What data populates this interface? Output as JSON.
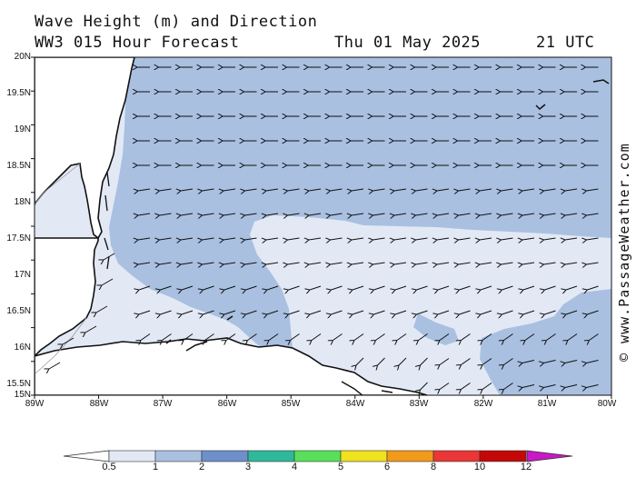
{
  "header": {
    "title": "Wave Height (m) and Direction",
    "model": "WW3 015 Hour Forecast",
    "date": "Thu 01 May 2025",
    "time": "21 UTC"
  },
  "map": {
    "lat_labels": [
      "20N",
      "19.5N",
      "19N",
      "18.5N",
      "18N",
      "17.5N",
      "17N",
      "16.5N",
      "16N",
      "15.5N",
      "15N"
    ],
    "lon_labels": [
      "89W",
      "88W",
      "87W",
      "86W",
      "85W",
      "84W",
      "83W",
      "82W",
      "81W",
      "80W"
    ],
    "lat_range": [
      15,
      20
    ],
    "lon_range": [
      -89,
      -80
    ],
    "arrow_direction": "westward over open water, turning south-westward near the coast"
  },
  "colorbar": {
    "labels": [
      "0.5",
      "1",
      "2",
      "3",
      "4",
      "5",
      "6",
      "8",
      "10",
      "12"
    ],
    "colors": [
      "#e2e9f5",
      "#a9c0e1",
      "#6d90ca",
      "#30b89a",
      "#58e05a",
      "#f0e21c",
      "#f29a1a",
      "#ea3636",
      "#c40808",
      "#c818c8"
    ]
  },
  "credit": "© www.PassageWeather.com"
}
